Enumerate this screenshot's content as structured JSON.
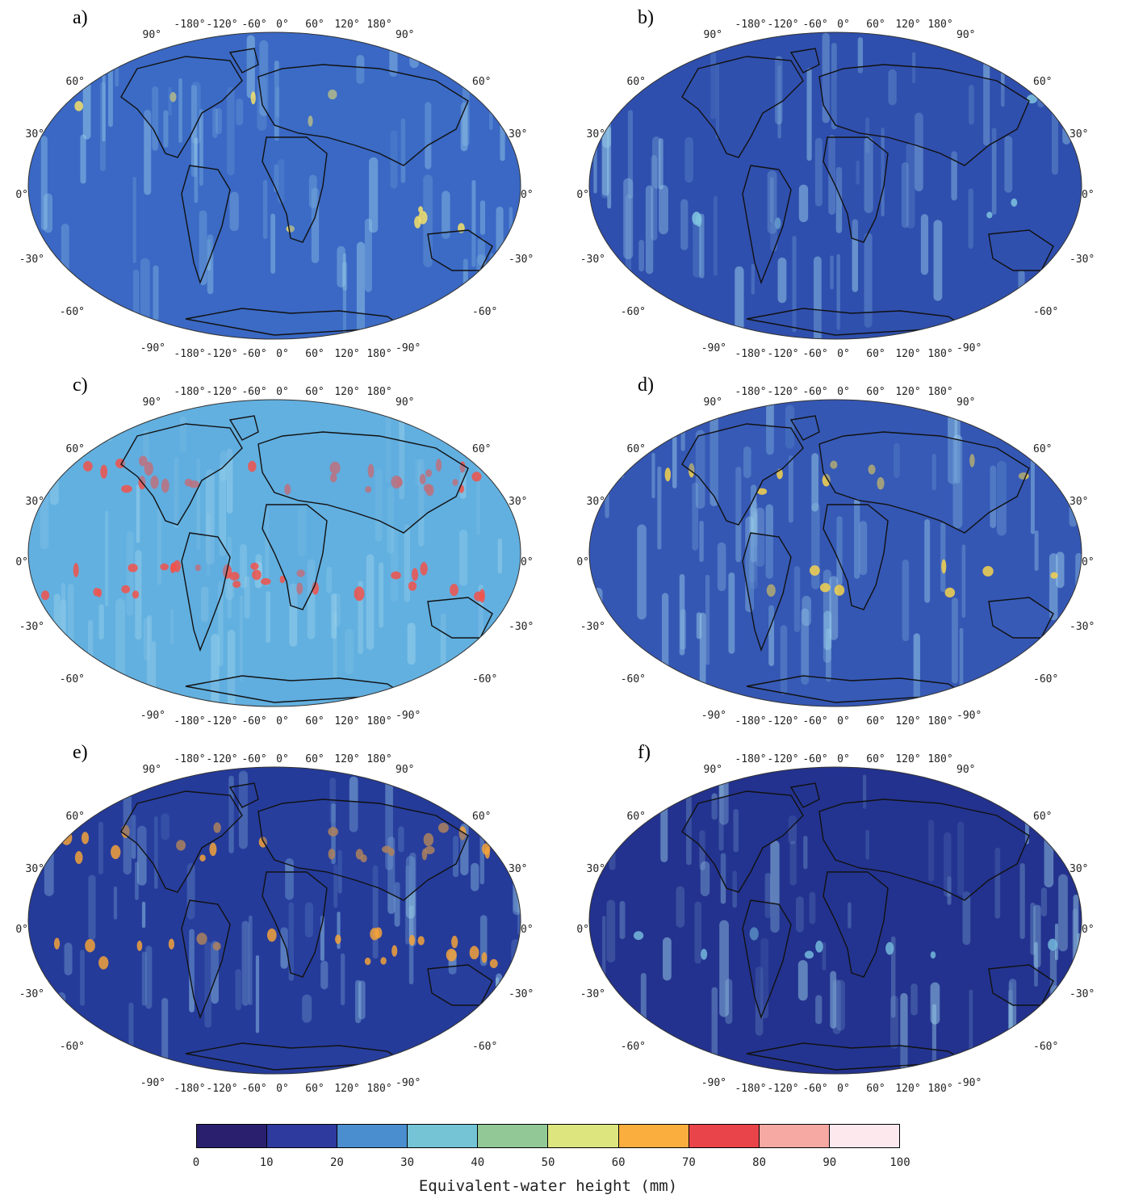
{
  "panels": [
    {
      "id": "a",
      "label": "a)",
      "bg": "#3a68c4",
      "hot": "#f4e06a",
      "landColor": "#3f74c9"
    },
    {
      "id": "b",
      "label": "b)",
      "bg": "#2f4fae",
      "hot": "#7fc3df",
      "landColor": "#3552b0"
    },
    {
      "id": "c",
      "label": "c)",
      "bg": "#62b0e0",
      "hot": "#f2524a",
      "landColor": "#5fa8dc"
    },
    {
      "id": "d",
      "label": "d)",
      "bg": "#3557b4",
      "hot": "#f5d24e",
      "landColor": "#3a62bb"
    },
    {
      "id": "e",
      "label": "e)",
      "bg": "#253b9a",
      "hot": "#f2a23a",
      "landColor": "#2a44a2"
    },
    {
      "id": "f",
      "label": "f)",
      "bg": "#23328e",
      "hot": "#74b8dc",
      "landColor": "#263a96"
    }
  ],
  "lon_labels": [
    "-180",
    "-120",
    "-60",
    "0",
    "60",
    "120",
    "180"
  ],
  "lat_labels": [
    "90",
    "60",
    "30",
    "0",
    "-30",
    "-60",
    "-90"
  ],
  "degree_symbol": "°",
  "colorbar": {
    "title": "Equivalent-water height (mm)",
    "ticks": [
      "0",
      "10",
      "20",
      "30",
      "40",
      "50",
      "60",
      "70",
      "80",
      "90",
      "100"
    ],
    "colors": [
      "#2a1f6e",
      "#2f3a9e",
      "#4a8ecf",
      "#74c4d6",
      "#92c895",
      "#dde57e",
      "#f9ae3e",
      "#e8444a",
      "#f5a9a2",
      "#fde8ee"
    ]
  }
}
